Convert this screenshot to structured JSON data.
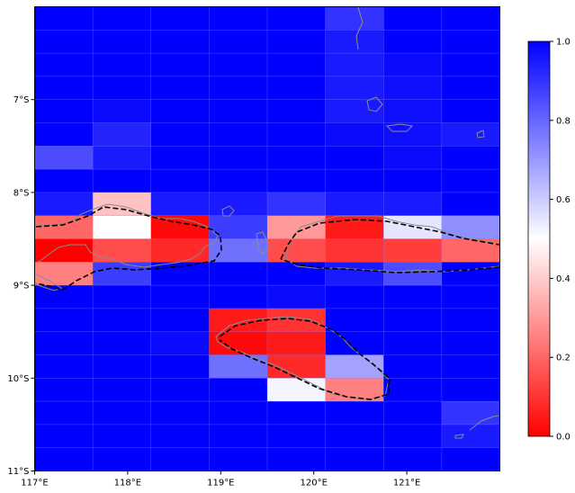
{
  "chart_data": {
    "type": "heatmap",
    "x_range": [
      117,
      122
    ],
    "y_range": [
      -11,
      -6
    ],
    "x_ticks": [
      {
        "value": 117,
        "label": "117°E"
      },
      {
        "value": 118,
        "label": "118°E"
      },
      {
        "value": 119,
        "label": "119°E"
      },
      {
        "value": 120,
        "label": "120°E"
      },
      {
        "value": 121,
        "label": "121°E"
      }
    ],
    "y_ticks": [
      {
        "value": -7,
        "label": "7°S"
      },
      {
        "value": -8,
        "label": "8°S"
      },
      {
        "value": -9,
        "label": "9°S"
      },
      {
        "value": -10,
        "label": "10°S"
      },
      {
        "value": -11,
        "label": "11°S"
      }
    ],
    "colorbar": {
      "range": [
        0,
        1
      ],
      "ticks": [
        "0.0",
        "0.2",
        "0.4",
        "0.6",
        "0.8",
        "1.0"
      ],
      "colormap": [
        "#ff0000",
        "#ffffff",
        "#0000ff"
      ]
    },
    "grid": {
      "cols": 8,
      "rows": 20,
      "values": [
        [
          1.0,
          1.0,
          1.0,
          1.0,
          1.0,
          0.9,
          1.0,
          1.0
        ],
        [
          1.0,
          1.0,
          1.0,
          1.0,
          1.0,
          0.95,
          1.0,
          1.0
        ],
        [
          1.0,
          1.0,
          1.0,
          1.0,
          1.0,
          0.95,
          0.98,
          1.0
        ],
        [
          1.0,
          1.0,
          1.0,
          1.0,
          1.0,
          0.95,
          0.97,
          1.0
        ],
        [
          1.0,
          0.98,
          1.0,
          1.0,
          1.0,
          0.95,
          0.97,
          1.0
        ],
        [
          1.0,
          0.93,
          1.0,
          1.0,
          1.0,
          0.98,
          0.97,
          0.95
        ],
        [
          0.85,
          0.95,
          1.0,
          1.0,
          1.0,
          1.0,
          0.98,
          1.0
        ],
        [
          1.0,
          1.0,
          1.0,
          1.0,
          1.0,
          1.0,
          1.0,
          1.0
        ],
        [
          0.95,
          0.38,
          0.95,
          0.95,
          0.9,
          0.95,
          0.95,
          1.0
        ],
        [
          0.2,
          0.5,
          0.02,
          0.88,
          0.3,
          0.05,
          0.55,
          0.72
        ],
        [
          0.0,
          0.15,
          0.08,
          0.78,
          0.15,
          0.1,
          0.12,
          0.2
        ],
        [
          0.25,
          0.88,
          1.0,
          1.0,
          1.0,
          0.95,
          0.85,
          1.0
        ],
        [
          1.0,
          1.0,
          1.0,
          1.0,
          0.98,
          1.0,
          1.0,
          1.0
        ],
        [
          1.0,
          1.0,
          1.0,
          0.05,
          0.1,
          1.0,
          1.0,
          1.0
        ],
        [
          1.0,
          1.0,
          0.98,
          0.02,
          0.05,
          1.0,
          1.0,
          1.0
        ],
        [
          1.0,
          1.0,
          1.0,
          0.78,
          0.08,
          0.68,
          1.0,
          1.0
        ],
        [
          1.0,
          1.0,
          1.0,
          1.0,
          0.52,
          0.25,
          1.0,
          1.0
        ],
        [
          1.0,
          1.0,
          1.0,
          1.0,
          1.0,
          1.0,
          1.0,
          0.9
        ],
        [
          1.0,
          1.0,
          1.0,
          1.0,
          1.0,
          1.0,
          1.0,
          0.95
        ],
        [
          1.0,
          1.0,
          1.0,
          1.0,
          1.0,
          1.0,
          1.0,
          1.0
        ]
      ]
    },
    "coastline_color": "#888888",
    "boundary_style": "dashed-black"
  }
}
